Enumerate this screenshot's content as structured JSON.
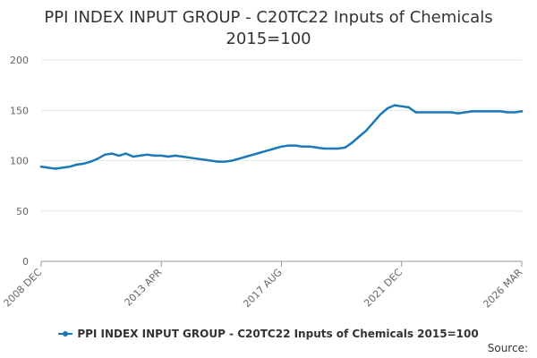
{
  "chart_data": {
    "type": "line",
    "title": "PPI INDEX INPUT GROUP - C20TC22 Inputs of Chemicals",
    "subtitle": "2015=100",
    "xlabel": "",
    "ylabel": "",
    "ylim": [
      0,
      200
    ],
    "yticks": [
      "0",
      "50",
      "100",
      "150",
      "200"
    ],
    "xticks": [
      "2008 DEC",
      "2013 APR",
      "2017 AUG",
      "2021 DEC",
      "2026 MAR"
    ],
    "grid": "horizontal",
    "legend_position": "bottom",
    "series": [
      {
        "name": "PPI INDEX INPUT GROUP - C20TC22 Inputs of Chemicals 2015=100",
        "color": "#1a7ab8",
        "x": [
          "2008 DEC",
          "2009 MAR",
          "2009 JUN",
          "2009 SEP",
          "2009 DEC",
          "2010 MAR",
          "2010 JUN",
          "2010 SEP",
          "2010 DEC",
          "2011 MAR",
          "2011 JUN",
          "2011 SEP",
          "2011 DEC",
          "2012 MAR",
          "2012 JUN",
          "2012 SEP",
          "2012 DEC",
          "2013 APR",
          "2013 JUN",
          "2013 SEP",
          "2013 DEC",
          "2014 MAR",
          "2014 JUN",
          "2014 SEP",
          "2014 DEC",
          "2015 MAR",
          "2015 JUN",
          "2015 SEP",
          "2015 DEC",
          "2016 MAR",
          "2016 JUN",
          "2016 SEP",
          "2016 DEC",
          "2017 MAR",
          "2017 AUG",
          "2017 DEC",
          "2018 MAR",
          "2018 JUN",
          "2018 SEP",
          "2018 DEC",
          "2019 MAR",
          "2019 JUN",
          "2019 SEP",
          "2019 DEC",
          "2020 MAR",
          "2020 JUN",
          "2020 SEP",
          "2020 DEC",
          "2021 MAR",
          "2021 JUN",
          "2021 SEP",
          "2021 DEC",
          "2022 MAR",
          "2022 JUN",
          "2022 SEP",
          "2022 DEC",
          "2023 MAR",
          "2023 JUN",
          "2023 SEP",
          "2023 DEC",
          "2024 MAR",
          "2024 JUN",
          "2024 SEP",
          "2024 DEC",
          "2025 MAR",
          "2025 JUN",
          "2025 SEP",
          "2025 DEC",
          "2026 MAR"
        ],
        "values": [
          94,
          93,
          92,
          93,
          94,
          96,
          97,
          99,
          102,
          106,
          107,
          105,
          107,
          104,
          105,
          106,
          105,
          105,
          104,
          105,
          104,
          103,
          102,
          101,
          100,
          99,
          99,
          100,
          102,
          104,
          106,
          108,
          110,
          112,
          114,
          115,
          115,
          114,
          114,
          113,
          112,
          112,
          112,
          113,
          118,
          124,
          130,
          138,
          146,
          152,
          155,
          154,
          153,
          148,
          148,
          148,
          148,
          148,
          148,
          147,
          148,
          149,
          149,
          149,
          149,
          149,
          148,
          148,
          149
        ]
      }
    ]
  },
  "legend_label": "PPI INDEX INPUT GROUP - C20TC22 Inputs of Chemicals 2015=100",
  "source_label": "Source:"
}
